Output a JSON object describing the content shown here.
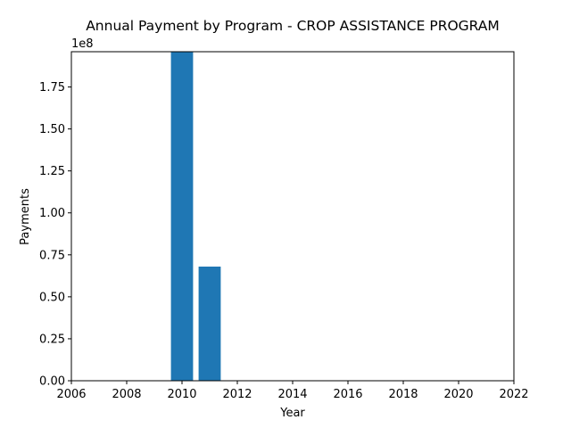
{
  "chart_data": {
    "type": "bar",
    "title": "Annual Payment by Program - CROP ASSISTANCE PROGRAM",
    "xlabel": "Year",
    "ylabel": "Payments",
    "y_offset_label": "1e8",
    "x": [
      2010,
      2011
    ],
    "values": [
      196000000,
      68000000
    ],
    "xlim": [
      2006,
      2022
    ],
    "ylim": [
      0,
      196000000
    ],
    "x_ticks": [
      2006,
      2008,
      2010,
      2012,
      2014,
      2016,
      2018,
      2020,
      2022
    ],
    "y_ticks": [
      0,
      25000000,
      50000000,
      75000000,
      100000000,
      125000000,
      150000000,
      175000000
    ],
    "y_tick_labels": [
      "0.00",
      "0.25",
      "0.50",
      "0.75",
      "1.00",
      "1.25",
      "1.50",
      "1.75"
    ],
    "bar_color": "#1f77b4",
    "grid": false,
    "legend": "none"
  }
}
